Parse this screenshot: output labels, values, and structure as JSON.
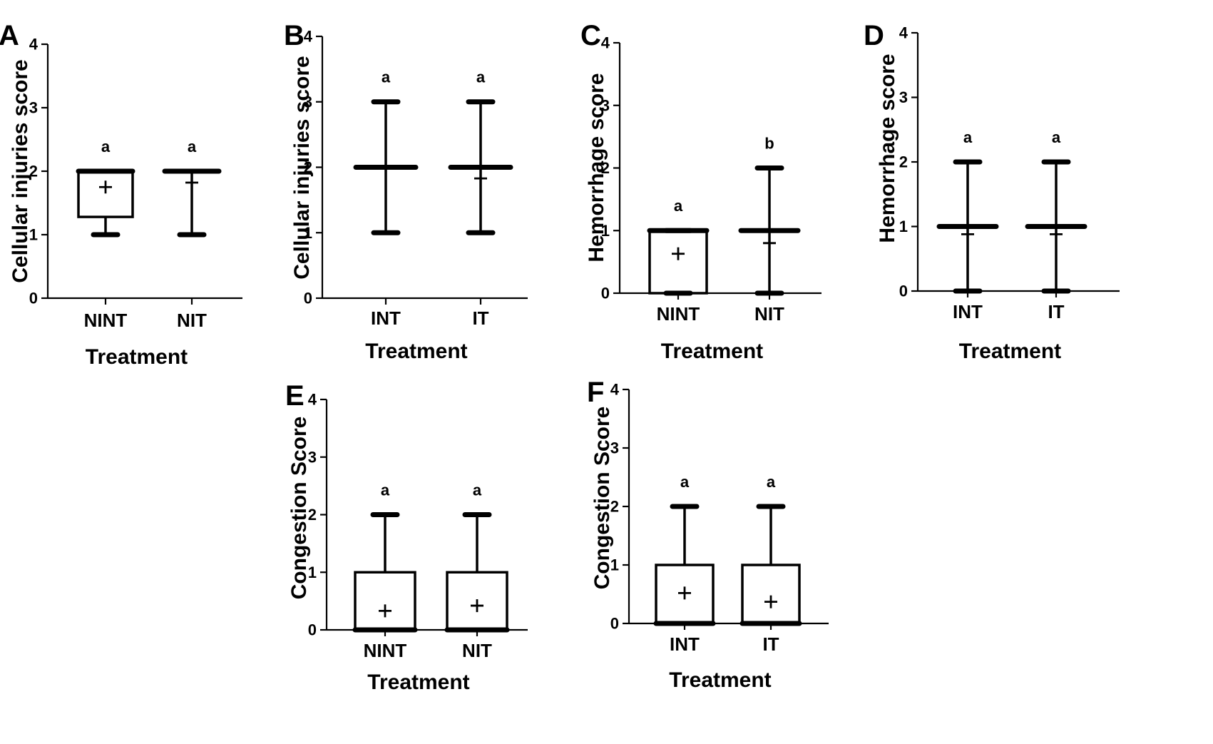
{
  "chart_data": [
    {
      "panel": "A",
      "type": "box",
      "ylabel": "Cellular injuries score",
      "xlabel": "Treatment",
      "ylim": [
        0,
        4
      ],
      "yticks": [
        "0",
        "1",
        "2",
        "3",
        "4"
      ],
      "categories": [
        "NINT",
        "NIT"
      ],
      "groups": [
        {
          "name": "NINT",
          "min": 1,
          "q1": 1.28,
          "median": 2,
          "q3": 2,
          "max": 2,
          "mean": 1.75,
          "sig": "a"
        },
        {
          "name": "NIT",
          "min": 1,
          "q1": 2,
          "median": 2,
          "q3": 2,
          "max": 2,
          "mean": 1.82,
          "sig": "a"
        }
      ]
    },
    {
      "panel": "B",
      "type": "box",
      "ylabel": "Cellular injuries score",
      "xlabel": "Treatment",
      "ylim": [
        0,
        4
      ],
      "yticks": [
        "0",
        "1",
        "2",
        "3",
        "4"
      ],
      "categories": [
        "INT",
        "IT"
      ],
      "groups": [
        {
          "name": "INT",
          "min": 1,
          "q1": 2,
          "median": 2,
          "q3": 2,
          "max": 3,
          "mean": 2.0,
          "sig": "a"
        },
        {
          "name": "IT",
          "min": 1,
          "q1": 2,
          "median": 2,
          "q3": 2,
          "max": 3,
          "mean": 1.83,
          "sig": "a"
        }
      ]
    },
    {
      "panel": "C",
      "type": "box",
      "ylabel": "Hemorrhage score",
      "xlabel": "Treatment",
      "ylim": [
        0,
        4
      ],
      "yticks": [
        "0",
        "1",
        "2",
        "3",
        "4"
      ],
      "categories": [
        "NINT",
        "NIT"
      ],
      "groups": [
        {
          "name": "NINT",
          "min": 0,
          "q1": 0,
          "median": 1,
          "q3": 1,
          "max": 1,
          "mean": 0.63,
          "sig": "a"
        },
        {
          "name": "NIT",
          "min": 0,
          "q1": 1,
          "median": 1,
          "q3": 1,
          "max": 2,
          "mean": 0.8,
          "sig": "b"
        }
      ]
    },
    {
      "panel": "D",
      "type": "box",
      "ylabel": "Hemorrhage score",
      "xlabel": "Treatment",
      "ylim": [
        0,
        4
      ],
      "yticks": [
        "0",
        "1",
        "2",
        "3",
        "4"
      ],
      "categories": [
        "INT",
        "IT"
      ],
      "groups": [
        {
          "name": "INT",
          "min": 0,
          "q1": 1,
          "median": 1,
          "q3": 1,
          "max": 2,
          "mean": 0.88,
          "sig": "a"
        },
        {
          "name": "IT",
          "min": 0,
          "q1": 1,
          "median": 1,
          "q3": 1,
          "max": 2,
          "mean": 0.88,
          "sig": "a"
        }
      ]
    },
    {
      "panel": "E",
      "type": "box",
      "ylabel": "Congestion Score",
      "xlabel": "Treatment",
      "ylim": [
        0,
        4
      ],
      "yticks": [
        "0",
        "1",
        "2",
        "3",
        "4"
      ],
      "categories": [
        "NINT",
        "NIT"
      ],
      "groups": [
        {
          "name": "NINT",
          "min": 0,
          "q1": 0,
          "median": 0,
          "q3": 1,
          "max": 2,
          "mean": 0.33,
          "sig": "a"
        },
        {
          "name": "NIT",
          "min": 0,
          "q1": 0,
          "median": 0,
          "q3": 1,
          "max": 2,
          "mean": 0.42,
          "sig": "a"
        }
      ]
    },
    {
      "panel": "F",
      "type": "box",
      "ylabel": "Congestion Score",
      "xlabel": "Treatment",
      "ylim": [
        0,
        4
      ],
      "yticks": [
        "0",
        "1",
        "2",
        "3",
        "4"
      ],
      "categories": [
        "INT",
        "IT"
      ],
      "groups": [
        {
          "name": "INT",
          "min": 0,
          "q1": 0,
          "median": 0,
          "q3": 1,
          "max": 2,
          "mean": 0.52,
          "sig": "a"
        },
        {
          "name": "IT",
          "min": 0,
          "q1": 0,
          "median": 0,
          "q3": 1,
          "max": 2,
          "mean": 0.37,
          "sig": "a"
        }
      ]
    }
  ]
}
